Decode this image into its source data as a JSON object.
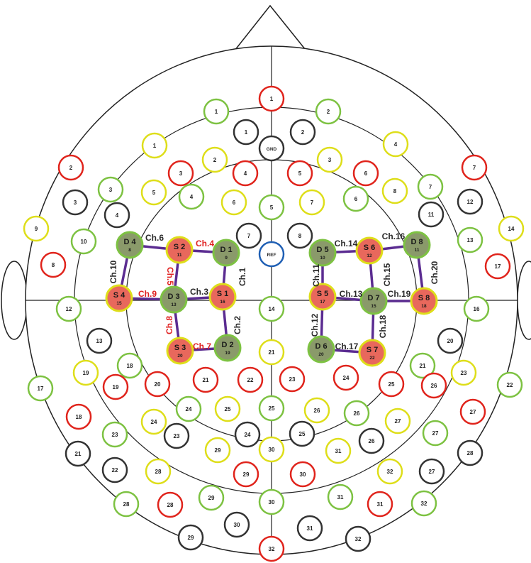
{
  "colors": {
    "green": "#7dc242",
    "yellow": "#dede1a",
    "red": "#e0241c",
    "black": "#333333",
    "blue": "#1f5fb4",
    "source_fill": "#e8685c",
    "detector_fill": "#8a9a6a",
    "channel_line": "#5b2c91",
    "red_label": "#e02020",
    "dark_label": "#2a2a2a",
    "head_line": "#222222"
  },
  "electrodes": [
    {
      "label": "1",
      "color": "red"
    },
    {
      "label": "1",
      "color": "green"
    },
    {
      "label": "2",
      "color": "green"
    },
    {
      "label": "1",
      "color": "black"
    },
    {
      "label": "2",
      "color": "black"
    },
    {
      "label": "GND",
      "color": "black"
    },
    {
      "label": "1",
      "color": "yellow"
    },
    {
      "label": "2",
      "color": "yellow"
    },
    {
      "label": "3",
      "color": "yellow"
    },
    {
      "label": "4",
      "color": "yellow"
    },
    {
      "label": "2",
      "color": "red"
    },
    {
      "label": "7",
      "color": "red"
    },
    {
      "label": "3",
      "color": "red"
    },
    {
      "label": "4",
      "color": "red"
    },
    {
      "label": "5",
      "color": "red"
    },
    {
      "label": "6",
      "color": "red"
    },
    {
      "label": "3",
      "color": "green"
    },
    {
      "label": "5",
      "color": "yellow"
    },
    {
      "label": "4",
      "color": "green"
    },
    {
      "label": "6",
      "color": "yellow"
    },
    {
      "label": "5",
      "color": "green"
    },
    {
      "label": "7",
      "color": "yellow"
    },
    {
      "label": "6",
      "color": "green"
    },
    {
      "label": "8",
      "color": "yellow"
    },
    {
      "label": "7",
      "color": "green"
    },
    {
      "label": "3",
      "color": "black"
    },
    {
      "label": "4",
      "color": "black"
    },
    {
      "label": "11",
      "color": "black"
    },
    {
      "label": "12",
      "color": "black"
    },
    {
      "label": "9",
      "color": "yellow"
    },
    {
      "label": "10",
      "color": "green"
    },
    {
      "label": "7",
      "color": "black"
    },
    {
      "label": "8",
      "color": "black"
    },
    {
      "label": "13",
      "color": "green"
    },
    {
      "label": "14",
      "color": "yellow"
    },
    {
      "label": "8",
      "color": "red"
    },
    {
      "label": "17",
      "color": "red"
    },
    {
      "label": "REF",
      "color": "blue"
    },
    {
      "label": "12",
      "color": "green"
    },
    {
      "label": "14",
      "color": "green"
    },
    {
      "label": "16",
      "color": "green"
    },
    {
      "label": "13",
      "color": "black"
    },
    {
      "label": "20",
      "color": "black"
    },
    {
      "label": "21",
      "color": "yellow"
    },
    {
      "label": "19",
      "color": "yellow"
    },
    {
      "label": "18",
      "color": "green"
    },
    {
      "label": "21",
      "color": "green"
    },
    {
      "label": "23",
      "color": "yellow"
    },
    {
      "label": "17",
      "color": "green"
    },
    {
      "label": "22",
      "color": "green"
    },
    {
      "label": "19",
      "color": "red"
    },
    {
      "label": "20",
      "color": "red"
    },
    {
      "label": "21",
      "color": "red"
    },
    {
      "label": "22",
      "color": "red"
    },
    {
      "label": "23",
      "color": "red"
    },
    {
      "label": "24",
      "color": "red"
    },
    {
      "label": "25",
      "color": "red"
    },
    {
      "label": "26",
      "color": "red"
    },
    {
      "label": "18",
      "color": "red"
    },
    {
      "label": "27",
      "color": "red"
    },
    {
      "label": "24",
      "color": "green"
    },
    {
      "label": "25",
      "color": "yellow"
    },
    {
      "label": "25",
      "color": "green"
    },
    {
      "label": "26",
      "color": "yellow"
    },
    {
      "label": "26",
      "color": "green"
    },
    {
      "label": "24",
      "color": "yellow"
    },
    {
      "label": "27",
      "color": "yellow"
    },
    {
      "label": "23",
      "color": "green"
    },
    {
      "label": "27",
      "color": "green"
    },
    {
      "label": "23",
      "color": "black"
    },
    {
      "label": "24",
      "color": "black"
    },
    {
      "label": "25",
      "color": "black"
    },
    {
      "label": "26",
      "color": "black"
    },
    {
      "label": "21",
      "color": "black"
    },
    {
      "label": "28",
      "color": "black"
    },
    {
      "label": "29",
      "color": "yellow"
    },
    {
      "label": "30",
      "color": "yellow"
    },
    {
      "label": "31",
      "color": "yellow"
    },
    {
      "label": "22",
      "color": "black"
    },
    {
      "label": "27",
      "color": "black"
    },
    {
      "label": "28",
      "color": "yellow"
    },
    {
      "label": "32",
      "color": "yellow"
    },
    {
      "label": "29",
      "color": "red"
    },
    {
      "label": "30",
      "color": "red"
    },
    {
      "label": "28",
      "color": "green"
    },
    {
      "label": "29",
      "color": "green"
    },
    {
      "label": "30",
      "color": "green"
    },
    {
      "label": "31",
      "color": "green"
    },
    {
      "label": "32",
      "color": "green"
    },
    {
      "label": "28",
      "color": "red"
    },
    {
      "label": "31",
      "color": "red"
    },
    {
      "label": "29",
      "color": "black"
    },
    {
      "label": "30",
      "color": "black"
    },
    {
      "label": "31",
      "color": "black"
    },
    {
      "label": "32",
      "color": "black"
    },
    {
      "label": "32",
      "color": "red"
    }
  ],
  "optodes": [
    {
      "id": "D1",
      "label": "D 1",
      "sub": "9",
      "type": "detector"
    },
    {
      "id": "S2",
      "label": "S 2",
      "sub": "11",
      "type": "source"
    },
    {
      "id": "D4",
      "label": "D 4",
      "sub": "8",
      "type": "detector"
    },
    {
      "id": "D3",
      "label": "D 3",
      "sub": "13",
      "type": "detector"
    },
    {
      "id": "S1",
      "label": "S 1",
      "sub": "16",
      "type": "source"
    },
    {
      "id": "S4",
      "label": "S 4",
      "sub": "15",
      "type": "source"
    },
    {
      "id": "D2",
      "label": "D 2",
      "sub": "19",
      "type": "detector"
    },
    {
      "id": "S3",
      "label": "S 3",
      "sub": "20",
      "type": "source"
    },
    {
      "id": "D5",
      "label": "D 5",
      "sub": "10",
      "type": "detector"
    },
    {
      "id": "S6",
      "label": "S 6",
      "sub": "12",
      "type": "source"
    },
    {
      "id": "D8",
      "label": "D 8",
      "sub": "11",
      "type": "detector"
    },
    {
      "id": "S5",
      "label": "S 5",
      "sub": "17",
      "type": "source"
    },
    {
      "id": "D7",
      "label": "D 7",
      "sub": "15",
      "type": "detector"
    },
    {
      "id": "S8",
      "label": "S 8",
      "sub": "18",
      "type": "source"
    },
    {
      "id": "D6",
      "label": "D 6",
      "sub": "20",
      "type": "detector"
    },
    {
      "id": "S7",
      "label": "S 7",
      "sub": "22",
      "type": "source"
    }
  ],
  "channels": [
    {
      "label": "Ch.1",
      "from": "S1",
      "to": "D1",
      "label_color": "dark"
    },
    {
      "label": "Ch.2",
      "from": "S1",
      "to": "D2",
      "label_color": "dark"
    },
    {
      "label": "Ch.3",
      "from": "S1",
      "to": "D3",
      "label_color": "dark"
    },
    {
      "label": "Ch.4",
      "from": "S2",
      "to": "D1",
      "label_color": "red"
    },
    {
      "label": "Ch.5",
      "from": "S2",
      "to": "D3",
      "label_color": "red"
    },
    {
      "label": "Ch.6",
      "from": "S2",
      "to": "D4",
      "label_color": "dark"
    },
    {
      "label": "Ch.7",
      "from": "S3",
      "to": "D2",
      "label_color": "red"
    },
    {
      "label": "Ch.8",
      "from": "S3",
      "to": "D3",
      "label_color": "red"
    },
    {
      "label": "Ch.9",
      "from": "S4",
      "to": "D3",
      "label_color": "red"
    },
    {
      "label": "Ch.10",
      "from": "S4",
      "to": "D4",
      "label_color": "dark"
    },
    {
      "label": "Ch.11",
      "from": "S5",
      "to": "D5",
      "label_color": "dark"
    },
    {
      "label": "Ch.12",
      "from": "S5",
      "to": "D6",
      "label_color": "dark"
    },
    {
      "label": "Ch.13",
      "from": "S5",
      "to": "D7",
      "label_color": "dark"
    },
    {
      "label": "Ch.14",
      "from": "S6",
      "to": "D5",
      "label_color": "dark"
    },
    {
      "label": "Ch.15",
      "from": "S6",
      "to": "D7",
      "label_color": "dark"
    },
    {
      "label": "Ch.16",
      "from": "S6",
      "to": "D8",
      "label_color": "dark"
    },
    {
      "label": "Ch.17",
      "from": "S7",
      "to": "D6",
      "label_color": "dark"
    },
    {
      "label": "Ch.18",
      "from": "S7",
      "to": "D7",
      "label_color": "dark"
    },
    {
      "label": "Ch.19",
      "from": "S8",
      "to": "D7",
      "label_color": "dark"
    },
    {
      "label": "Ch.20",
      "from": "S8",
      "to": "D8",
      "label_color": "dark"
    }
  ]
}
